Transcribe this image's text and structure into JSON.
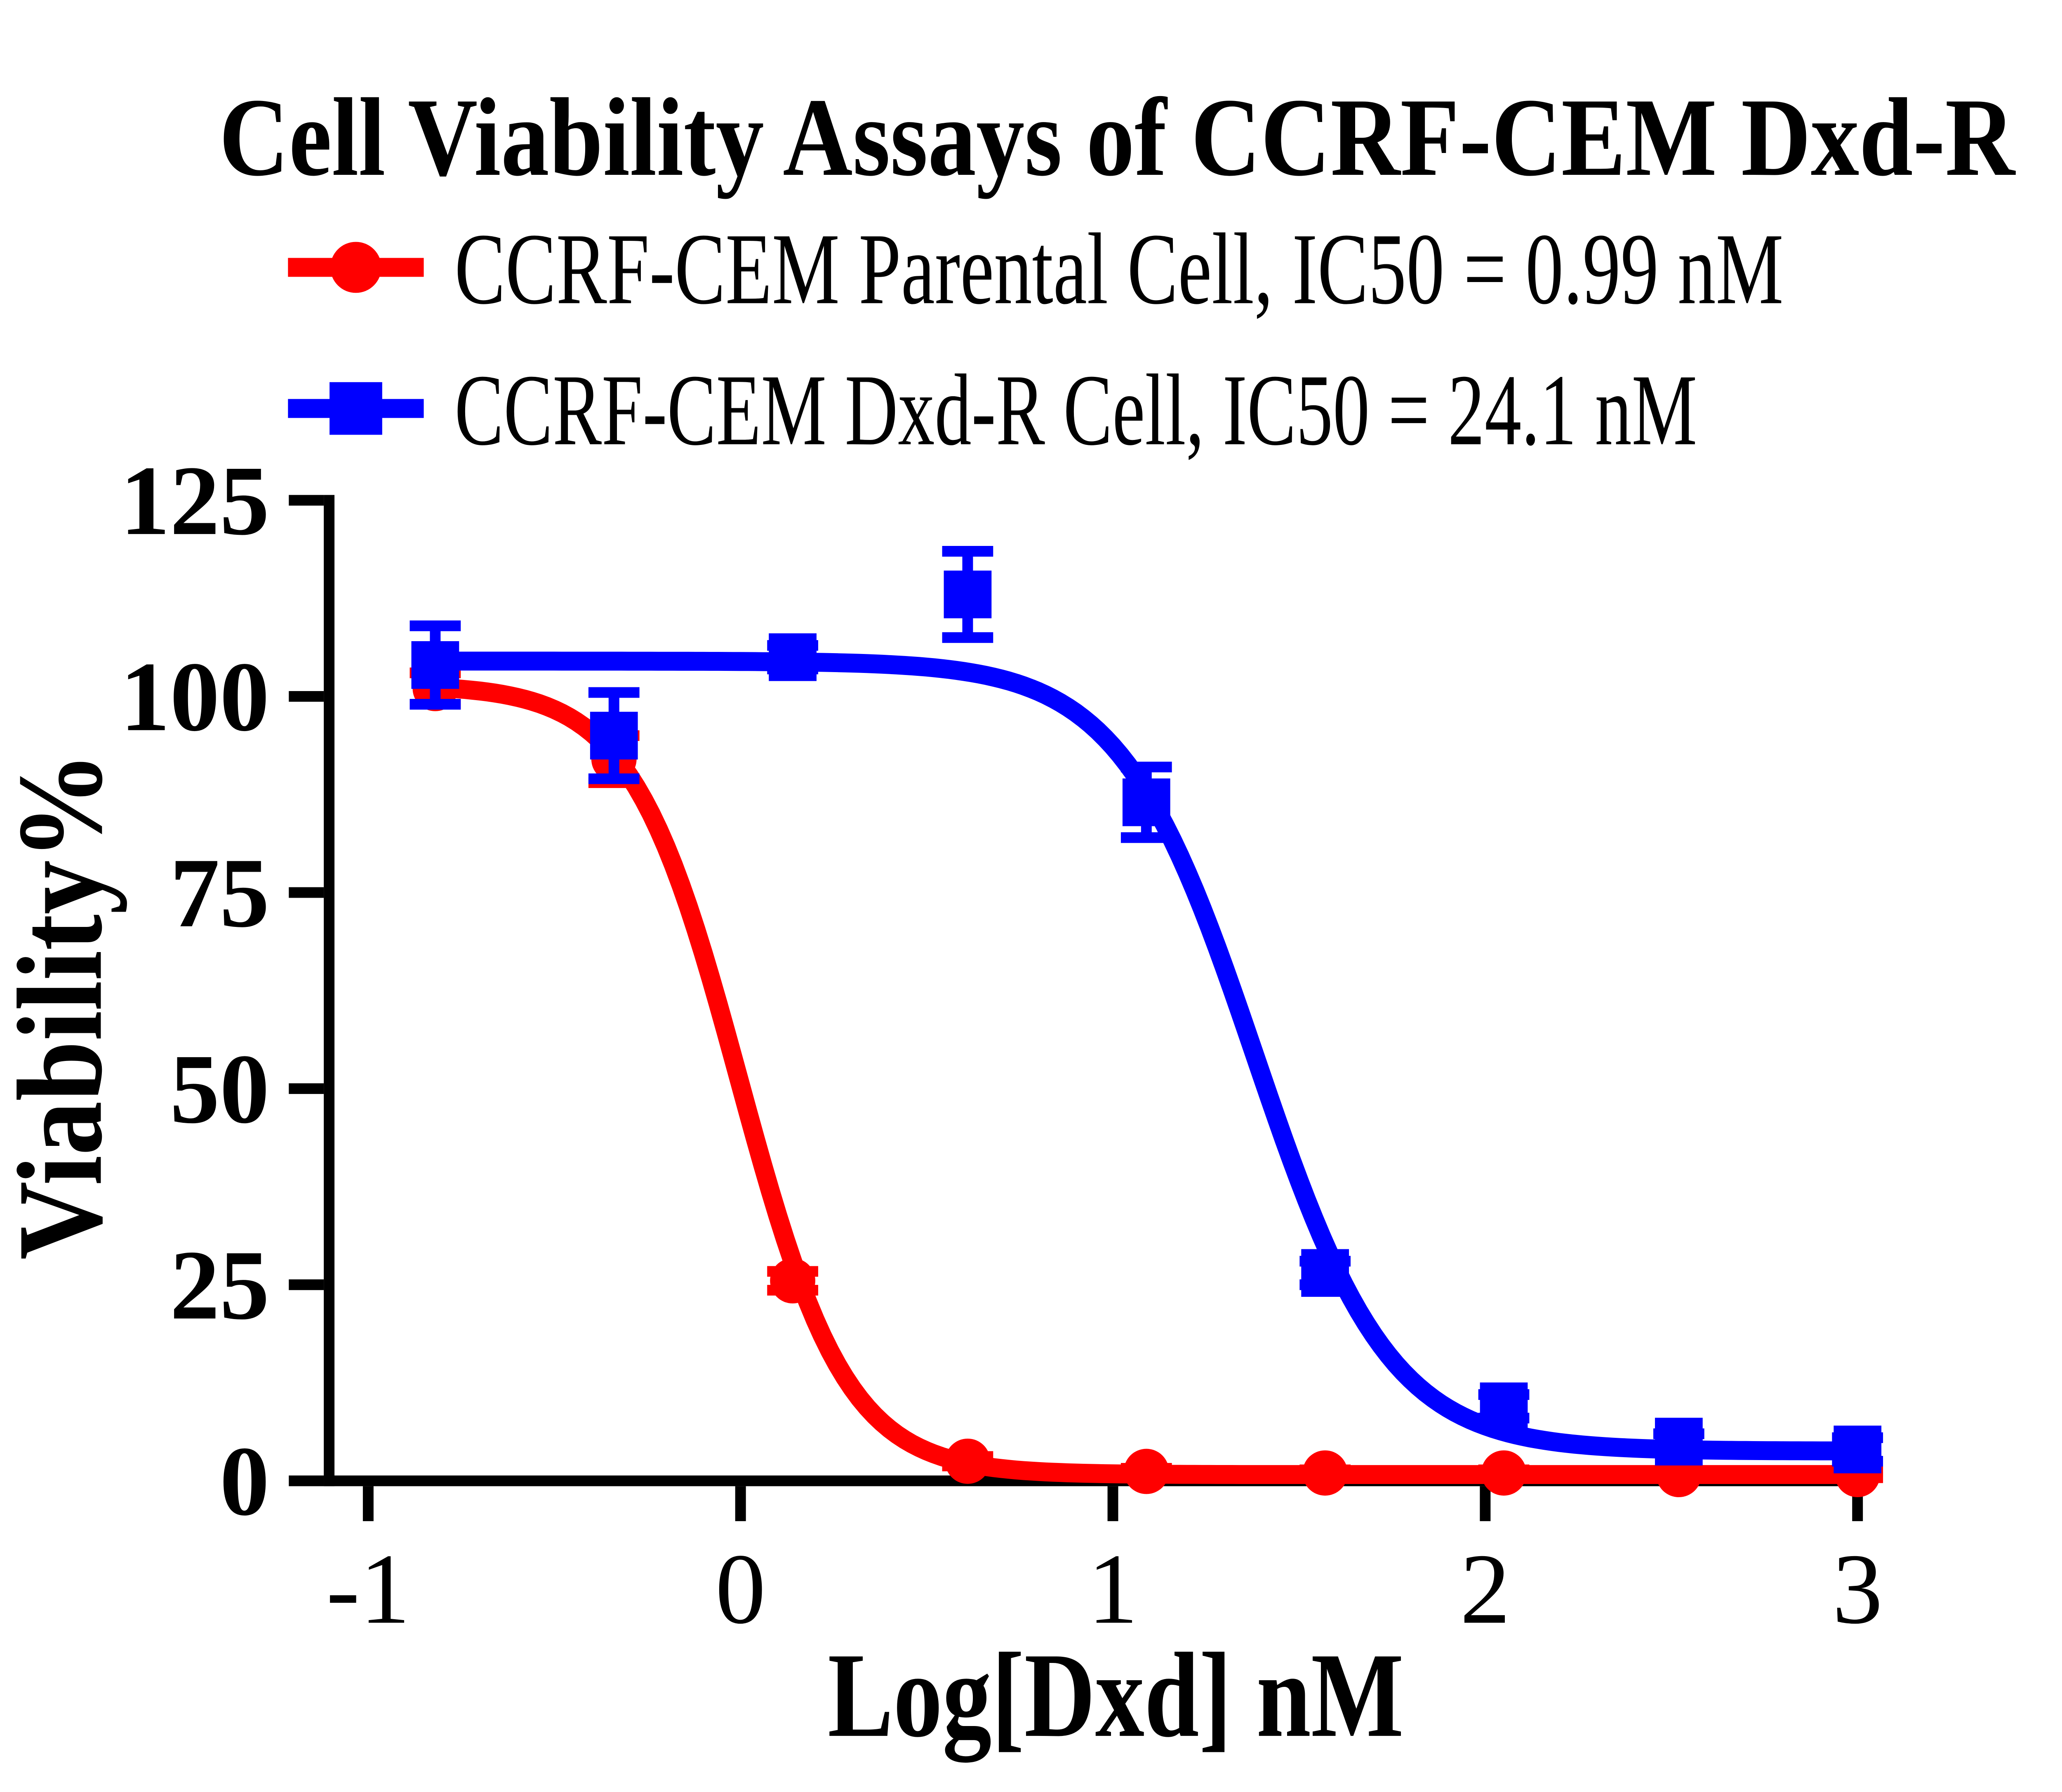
{
  "chart_data": {
    "type": "line",
    "title": "Cell Viability Assays of CCRF-CEM Dxd-R",
    "xlabel": "Log[Dxd] nM",
    "ylabel": "Viability%",
    "xlim": [
      -1.16,
      3.05
    ],
    "ylim": [
      0,
      125
    ],
    "x_ticks": [
      -1,
      0,
      1,
      2,
      3
    ],
    "y_ticks": [
      0,
      25,
      50,
      75,
      100,
      125
    ],
    "grid": false,
    "legend_position": "top-left",
    "background_color": "#ffffff",
    "axis_color": "#000000",
    "series": [
      {
        "id": "parental",
        "name": "CCRF-CEM Parental Cell",
        "legend_label": "CCRF-CEM Parental Cell, IC50 = 0.99 nM",
        "ic50_label": "IC50 = 0.99 nM",
        "ic50_nM": 0.99,
        "color": "#ff0000",
        "marker": "circle",
        "x": [
          -0.82,
          -0.34,
          0.14,
          0.61,
          1.09,
          1.57,
          2.05,
          2.52,
          3.0
        ],
        "y": [
          101,
          92,
          25.5,
          2.5,
          1.2,
          1.0,
          1.0,
          0.8,
          0.8
        ],
        "err": [
          2,
          3,
          1.2,
          0.6,
          0.4,
          0.4,
          0.4,
          0.4,
          0.4
        ],
        "fit": {
          "top": 101.5,
          "bottom": 0.8,
          "logIC50": -0.004,
          "hill": 3.0
        },
        "fit_range": [
          -0.82,
          3.0
        ]
      },
      {
        "id": "dxdr",
        "name": "CCRF-CEM Dxd-R Cell",
        "legend_label": "CCRF-CEM Dxd-R Cell, IC50 = 24.1 nM",
        "ic50_label": "IC50 = 24.1 nM",
        "ic50_nM": 24.1,
        "color": "#0000ff",
        "marker": "square",
        "x": [
          -0.82,
          -0.34,
          0.14,
          0.61,
          1.09,
          1.57,
          2.05,
          2.52,
          3.0
        ],
        "y": [
          104,
          95,
          105,
          113,
          86.5,
          26.5,
          9.5,
          5,
          4
        ],
        "err": [
          5,
          5.5,
          1.5,
          5.5,
          4.5,
          1.5,
          1.5,
          1,
          1.5
        ],
        "fit": {
          "top": 104.5,
          "bottom": 3.8,
          "logIC50": 1.382,
          "hill": 2.4
        },
        "fit_range": [
          -0.82,
          3.0
        ]
      }
    ]
  }
}
